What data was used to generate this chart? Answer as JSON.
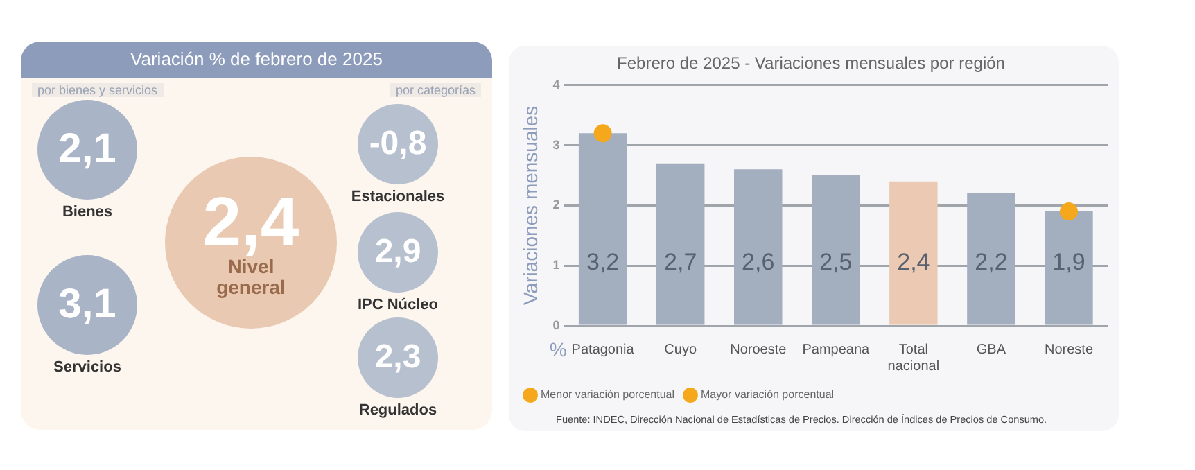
{
  "chart_data": [
    {
      "type": "other",
      "title": "Variación % de febrero de 2025",
      "annotations": [
        "por bienes y servicios",
        "por categorías"
      ],
      "categories": [
        "Bienes",
        "Servicios",
        "Nivel general",
        "Estacionales",
        "IPC Núcleo",
        "Regulados"
      ],
      "value_labels": [
        "2,1",
        "3,1",
        "2,4",
        "-0,8",
        "2,9",
        "2,3"
      ]
    },
    {
      "type": "bar",
      "title": "Febrero de 2025 - Variaciones mensuales por región",
      "ylabel": "Variaciones mensuales",
      "categories": [
        "Patagonia",
        "Cuyo",
        "Noroeste",
        "Pampeana",
        "Total nacional",
        "GBA",
        "Noreste"
      ],
      "series": [
        {
          "type": "bar",
          "values": [
            3.2,
            2.7,
            2.6,
            2.5,
            2.4,
            2.2,
            1.9
          ],
          "colors": [
            "#a3aebf",
            "#a3aebf",
            "#a3aebf",
            "#a3aebf",
            "#ecc9b2",
            "#a3aebf",
            "#a3aebf"
          ],
          "value_labels": [
            "3,2",
            "2,7",
            "2,6",
            "2,5",
            "2,4",
            "2,2",
            "1,9"
          ]
        },
        {
          "type": "scatter",
          "name": "Menor variación porcentual",
          "color": "#f5a81c",
          "x": [
            "Noreste"
          ],
          "values": [
            1.9
          ]
        },
        {
          "type": "scatter",
          "name": "Mayor variación porcentual",
          "color": "#f5a81c",
          "x": [
            "Patagonia"
          ],
          "values": [
            3.2
          ]
        }
      ],
      "ylim": [
        0,
        4
      ],
      "yticks": [
        0,
        1,
        2,
        3,
        4
      ],
      "grid": "y",
      "legend": "bottom left",
      "marker": "circle",
      "annotations": [
        "%",
        "Fuente: INDEC, Dirección Nacional de Estadísticas de Precios. Dirección de Índices de Precios de Consumo."
      ]
    }
  ]
}
